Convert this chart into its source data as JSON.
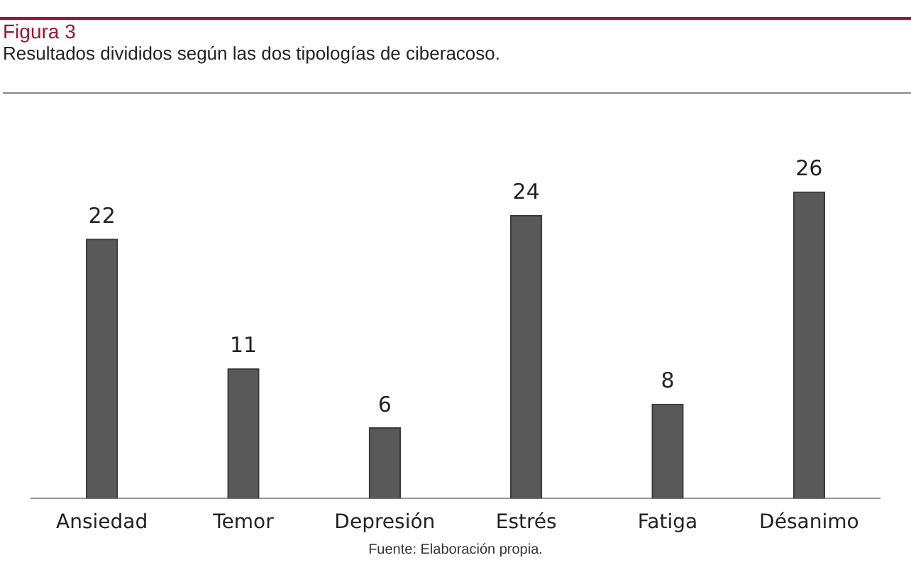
{
  "chart_data": {
    "type": "bar",
    "title": "Figura 3",
    "subtitle": "Resultados divididos según las dos tipologías de ciberacoso.",
    "categories": [
      "Ansiedad",
      "Temor",
      "Depresión",
      "Estrés",
      "Fatiga",
      "Désanimo"
    ],
    "values": [
      22,
      11,
      6,
      24,
      8,
      26
    ],
    "color": "#595959",
    "data_labels": true,
    "grid": false,
    "legend": false,
    "annotations": [
      "Fuente: Elaboración propia."
    ]
  }
}
